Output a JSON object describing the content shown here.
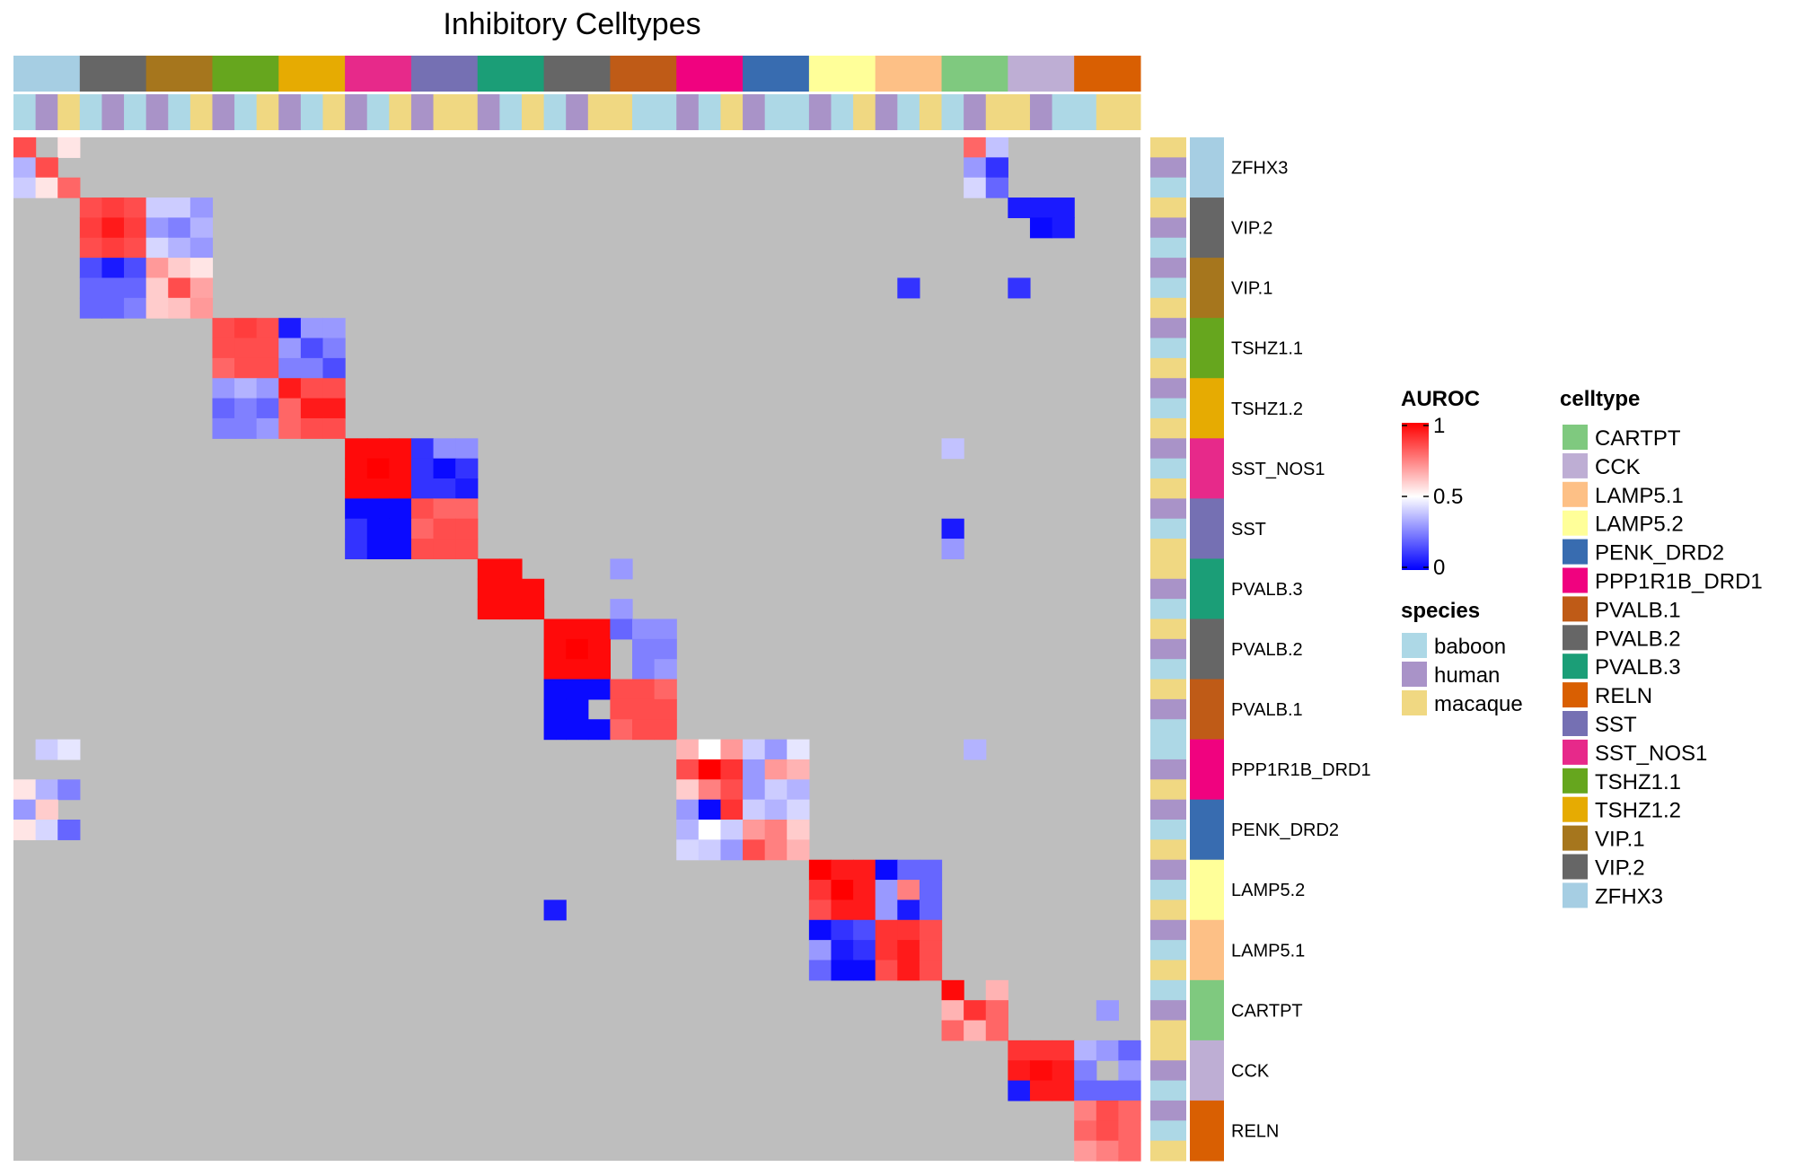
{
  "chart_data": {
    "type": "heatmap",
    "title": "Inhibitory Celltypes",
    "value_name": "AUROC",
    "color_scale": {
      "low": "#0000FF",
      "mid": "#FFFFFF",
      "high": "#FF0000",
      "range": [
        0,
        1
      ],
      "ticks": [
        "1",
        "0.5",
        "0"
      ]
    },
    "na_color": "#BEBEBE",
    "celltype_colors": {
      "CARTPT": "#7FC97F",
      "CCK": "#BEAED4",
      "LAMP5.1": "#FDC086",
      "LAMP5.2": "#FFFF99",
      "PENK_DRD2": "#386CB0",
      "PPP1R1B_DRD1": "#F0027F",
      "PVALB.1": "#BF5B17",
      "PVALB.2": "#666666",
      "PVALB.3": "#1B9E77",
      "RELN": "#D95F02",
      "SST": "#7570B3",
      "SST_NOS1": "#E7298A",
      "TSHZ1.1": "#66A61E",
      "TSHZ1.2": "#E6AB02",
      "VIP.1": "#A6761D",
      "VIP.2": "#666666",
      "ZFHX3": "#A6CEE3"
    },
    "species_colors": {
      "baboon": "#ADD8E6",
      "human": "#A993C8",
      "macaque": "#F0D882"
    },
    "row_groups": [
      {
        "celltype": "ZFHX3",
        "species": [
          "macaque",
          "human",
          "baboon"
        ]
      },
      {
        "celltype": "VIP.2",
        "species": [
          "macaque",
          "human",
          "baboon"
        ]
      },
      {
        "celltype": "VIP.1",
        "species": [
          "human",
          "baboon",
          "macaque"
        ]
      },
      {
        "celltype": "TSHZ1.1",
        "species": [
          "human",
          "baboon",
          "macaque"
        ]
      },
      {
        "celltype": "TSHZ1.2",
        "species": [
          "human",
          "baboon",
          "macaque"
        ]
      },
      {
        "celltype": "SST_NOS1",
        "species": [
          "human",
          "baboon",
          "macaque"
        ]
      },
      {
        "celltype": "SST",
        "species": [
          "human",
          "baboon",
          "macaque"
        ]
      },
      {
        "celltype": "PVALB.3",
        "species": [
          "macaque",
          "human",
          "baboon"
        ]
      },
      {
        "celltype": "PVALB.2",
        "species": [
          "macaque",
          "human",
          "baboon"
        ]
      },
      {
        "celltype": "PVALB.1",
        "species": [
          "macaque",
          "human",
          "baboon"
        ]
      },
      {
        "celltype": "PPP1R1B_DRD1",
        "species": [
          "baboon",
          "human",
          "macaque"
        ]
      },
      {
        "celltype": "PENK_DRD2",
        "species": [
          "human",
          "baboon",
          "macaque"
        ]
      },
      {
        "celltype": "LAMP5.2",
        "species": [
          "human",
          "baboon",
          "macaque"
        ]
      },
      {
        "celltype": "LAMP5.1",
        "species": [
          "human",
          "baboon",
          "macaque"
        ]
      },
      {
        "celltype": "CARTPT",
        "species": [
          "baboon",
          "human",
          "macaque"
        ]
      },
      {
        "celltype": "CCK",
        "species": [
          "macaque",
          "human",
          "baboon"
        ]
      },
      {
        "celltype": "RELN",
        "species": [
          "human",
          "baboon",
          "macaque"
        ]
      }
    ],
    "col_species": [
      "baboon",
      "human",
      "macaque",
      "baboon",
      "human",
      "baboon",
      "human",
      "baboon",
      "macaque",
      "human",
      "baboon",
      "macaque",
      "human",
      "baboon",
      "macaque",
      "human",
      "baboon",
      "macaque",
      "human",
      "macaque",
      "macaque",
      "human",
      "baboon",
      "macaque",
      "baboon",
      "human",
      "macaque",
      "macaque",
      "baboon",
      "baboon",
      "human",
      "baboon",
      "macaque",
      "human",
      "baboon",
      "baboon",
      "human",
      "baboon",
      "macaque",
      "human",
      "baboon",
      "macaque",
      "baboon",
      "human",
      "macaque",
      "macaque",
      "human",
      "baboon",
      "baboon",
      "macaque",
      "macaque"
    ],
    "blocks": [
      {
        "rows": [
          0,
          2
        ],
        "cols": [
          0,
          2
        ],
        "values": [
          [
            0.85,
            null,
            0.55
          ],
          [
            0.35,
            0.85,
            null
          ],
          [
            0.4,
            0.55,
            0.8
          ]
        ]
      },
      {
        "rows": [
          3,
          5
        ],
        "cols": [
          3,
          5
        ],
        "values": [
          [
            0.85,
            0.88,
            0.85
          ],
          [
            0.88,
            0.95,
            0.88
          ],
          [
            0.85,
            0.88,
            0.85
          ]
        ]
      },
      {
        "rows": [
          3,
          5
        ],
        "cols": [
          6,
          8
        ],
        "values": [
          [
            0.4,
            0.4,
            0.3
          ],
          [
            0.3,
            0.25,
            0.35
          ],
          [
            0.42,
            0.35,
            0.3
          ]
        ]
      },
      {
        "rows": [
          6,
          8
        ],
        "cols": [
          3,
          5
        ],
        "values": [
          [
            0.15,
            0.05,
            0.15
          ],
          [
            0.2,
            0.2,
            0.2
          ],
          [
            0.2,
            0.2,
            0.25
          ]
        ]
      },
      {
        "rows": [
          6,
          8
        ],
        "cols": [
          6,
          8
        ],
        "values": [
          [
            0.7,
            0.6,
            0.55
          ],
          [
            0.6,
            0.85,
            0.68
          ],
          [
            0.6,
            0.62,
            0.7
          ]
        ]
      },
      {
        "rows": [
          9,
          11
        ],
        "cols": [
          9,
          11
        ],
        "values": [
          [
            0.85,
            0.88,
            0.85
          ],
          [
            0.85,
            0.85,
            0.85
          ],
          [
            0.8,
            0.85,
            0.85
          ]
        ]
      },
      {
        "rows": [
          9,
          11
        ],
        "cols": [
          12,
          14
        ],
        "values": [
          [
            0.05,
            0.3,
            0.3
          ],
          [
            0.3,
            0.15,
            0.25
          ],
          [
            0.25,
            0.25,
            0.15
          ]
        ]
      },
      {
        "rows": [
          12,
          14
        ],
        "cols": [
          9,
          11
        ],
        "values": [
          [
            0.3,
            0.35,
            0.3
          ],
          [
            0.2,
            0.25,
            0.2
          ],
          [
            0.25,
            0.25,
            0.3
          ]
        ]
      },
      {
        "rows": [
          12,
          14
        ],
        "cols": [
          12,
          14
        ],
        "values": [
          [
            0.95,
            0.85,
            0.85
          ],
          [
            0.8,
            0.95,
            0.95
          ],
          [
            0.8,
            0.85,
            0.85
          ]
        ]
      },
      {
        "rows": [
          15,
          17
        ],
        "cols": [
          15,
          17
        ],
        "values": [
          [
            0.98,
            0.98,
            0.98
          ],
          [
            0.98,
            1.0,
            0.98
          ],
          [
            0.98,
            0.98,
            0.98
          ]
        ]
      },
      {
        "rows": [
          15,
          17
        ],
        "cols": [
          18,
          20
        ],
        "values": [
          [
            0.1,
            0.28,
            0.28
          ],
          [
            0.1,
            0.02,
            0.1
          ],
          [
            0.1,
            0.1,
            0.05
          ]
        ]
      },
      {
        "rows": [
          18,
          20
        ],
        "cols": [
          15,
          17
        ],
        "values": [
          [
            0.02,
            0.02,
            0.02
          ],
          [
            0.1,
            0.02,
            0.02
          ],
          [
            0.1,
            0.02,
            0.02
          ]
        ]
      },
      {
        "rows": [
          18,
          20
        ],
        "cols": [
          18,
          20
        ],
        "values": [
          [
            0.85,
            0.8,
            0.8
          ],
          [
            0.8,
            0.85,
            0.85
          ],
          [
            0.85,
            0.85,
            0.85
          ]
        ]
      },
      {
        "rows": [
          21,
          23
        ],
        "cols": [
          21,
          23
        ],
        "values": [
          [
            0.98,
            0.98,
            null
          ],
          [
            0.98,
            0.98,
            0.98
          ],
          [
            0.98,
            0.98,
            0.98
          ]
        ]
      },
      {
        "rows": [
          24,
          26
        ],
        "cols": [
          24,
          26
        ],
        "values": [
          [
            0.98,
            0.98,
            0.98
          ],
          [
            0.98,
            1.0,
            0.98
          ],
          [
            0.98,
            0.98,
            0.98
          ]
        ]
      },
      {
        "rows": [
          24,
          26
        ],
        "cols": [
          27,
          29
        ],
        "values": [
          [
            0.2,
            0.28,
            0.28
          ],
          [
            null,
            0.25,
            0.25
          ],
          [
            null,
            0.25,
            0.3
          ]
        ]
      },
      {
        "rows": [
          27,
          29
        ],
        "cols": [
          24,
          26
        ],
        "values": [
          [
            0.02,
            0.02,
            0.02
          ],
          [
            0.02,
            0.02,
            null
          ],
          [
            0.02,
            0.02,
            0.02
          ]
        ]
      },
      {
        "rows": [
          27,
          29
        ],
        "cols": [
          27,
          29
        ],
        "values": [
          [
            0.85,
            0.85,
            0.8
          ],
          [
            0.85,
            0.85,
            0.85
          ],
          [
            0.8,
            0.85,
            0.85
          ]
        ]
      },
      {
        "rows": [
          30,
          35
        ],
        "cols": [
          30,
          35
        ],
        "values": [
          [
            0.65,
            0.5,
            0.7,
            0.4,
            0.3,
            0.45
          ],
          [
            0.85,
            1.0,
            0.9,
            0.3,
            0.7,
            0.65
          ],
          [
            0.6,
            0.75,
            0.85,
            0.3,
            0.4,
            0.35
          ],
          [
            0.3,
            0.02,
            0.9,
            0.4,
            0.35,
            0.42
          ],
          [
            0.35,
            0.5,
            0.4,
            0.7,
            0.75,
            0.6
          ],
          [
            0.42,
            0.4,
            0.3,
            0.85,
            0.75,
            0.65
          ]
        ]
      },
      {
        "rows": [
          36,
          38
        ],
        "cols": [
          36,
          38
        ],
        "values": [
          [
            1.0,
            0.95,
            0.95
          ],
          [
            0.9,
            1.0,
            0.95
          ],
          [
            0.85,
            0.95,
            0.95
          ]
        ]
      },
      {
        "rows": [
          36,
          38
        ],
        "cols": [
          39,
          41
        ],
        "values": [
          [
            0.02,
            0.2,
            0.2
          ],
          [
            0.3,
            0.75,
            0.2
          ],
          [
            0.3,
            0.05,
            0.2
          ]
        ]
      },
      {
        "rows": [
          39,
          41
        ],
        "cols": [
          36,
          38
        ],
        "values": [
          [
            0.02,
            0.1,
            0.15
          ],
          [
            0.3,
            0.05,
            0.1
          ],
          [
            0.2,
            0.02,
            0.02
          ]
        ]
      },
      {
        "rows": [
          39,
          41
        ],
        "cols": [
          39,
          41
        ],
        "values": [
          [
            0.9,
            0.9,
            0.85
          ],
          [
            0.9,
            0.95,
            0.85
          ],
          [
            0.85,
            0.95,
            0.85
          ]
        ]
      },
      {
        "rows": [
          42,
          44
        ],
        "cols": [
          42,
          44
        ],
        "values": [
          [
            0.98,
            null,
            0.65
          ],
          [
            0.65,
            0.9,
            0.8
          ],
          [
            0.8,
            0.65,
            0.8
          ]
        ]
      },
      {
        "rows": [
          45,
          47
        ],
        "cols": [
          45,
          47
        ],
        "values": [
          [
            0.9,
            0.9,
            0.9
          ],
          [
            0.95,
            0.98,
            0.95
          ],
          [
            0.95,
            0.95,
            0.95
          ]
        ]
      },
      {
        "rows": [
          45,
          47
        ],
        "cols": [
          48,
          50
        ],
        "values": [
          [
            0.35,
            0.3,
            0.2
          ],
          [
            0.25,
            null,
            0.3
          ],
          [
            0.2,
            0.2,
            0.2
          ]
        ]
      },
      {
        "rows": [
          48,
          50
        ],
        "cols": [
          48,
          50
        ],
        "values": [
          [
            0.75,
            0.85,
            0.8
          ],
          [
            0.8,
            0.85,
            0.8
          ],
          [
            0.7,
            0.75,
            0.8
          ]
        ]
      }
    ],
    "cells": [
      {
        "row": 0,
        "col": 43,
        "value": 0.8
      },
      {
        "row": 0,
        "col": 44,
        "value": 0.38
      },
      {
        "row": 1,
        "col": 43,
        "value": 0.3
      },
      {
        "row": 1,
        "col": 44,
        "value": 0.1
      },
      {
        "row": 2,
        "col": 43,
        "value": 0.42
      },
      {
        "row": 2,
        "col": 44,
        "value": 0.2
      },
      {
        "row": 3,
        "col": 45,
        "value": 0.05
      },
      {
        "row": 3,
        "col": 46,
        "value": 0.05
      },
      {
        "row": 3,
        "col": 47,
        "value": 0.05
      },
      {
        "row": 4,
        "col": 46,
        "value": 0.02
      },
      {
        "row": 4,
        "col": 47,
        "value": 0.05
      },
      {
        "row": 7,
        "col": 40,
        "value": 0.1
      },
      {
        "row": 7,
        "col": 45,
        "value": 0.1
      },
      {
        "row": 15,
        "col": 42,
        "value": 0.38
      },
      {
        "row": 19,
        "col": 42,
        "value": 0.05
      },
      {
        "row": 20,
        "col": 42,
        "value": 0.3
      },
      {
        "row": 21,
        "col": 27,
        "value": 0.3
      },
      {
        "row": 23,
        "col": 27,
        "value": 0.3
      },
      {
        "row": 30,
        "col": 1,
        "value": 0.4
      },
      {
        "row": 30,
        "col": 2,
        "value": 0.45
      },
      {
        "row": 30,
        "col": 43,
        "value": 0.35
      },
      {
        "row": 32,
        "col": 0,
        "value": 0.55
      },
      {
        "row": 32,
        "col": 1,
        "value": 0.35
      },
      {
        "row": 32,
        "col": 2,
        "value": 0.25
      },
      {
        "row": 33,
        "col": 0,
        "value": 0.3
      },
      {
        "row": 33,
        "col": 1,
        "value": 0.6
      },
      {
        "row": 34,
        "col": 0,
        "value": 0.55
      },
      {
        "row": 34,
        "col": 1,
        "value": 0.42
      },
      {
        "row": 34,
        "col": 2,
        "value": 0.2
      },
      {
        "row": 38,
        "col": 24,
        "value": 0.05
      },
      {
        "row": 43,
        "col": 49,
        "value": 0.3
      },
      {
        "row": 47,
        "col": 45,
        "value": 0.05
      }
    ]
  },
  "legend": {
    "auroc": {
      "title": "AUROC",
      "ticks": [
        "1",
        "0.5",
        "0"
      ]
    },
    "species": {
      "title": "species",
      "items": [
        "baboon",
        "human",
        "macaque"
      ]
    },
    "celltype": {
      "title": "celltype",
      "items": [
        "CARTPT",
        "CCK",
        "LAMP5.1",
        "LAMP5.2",
        "PENK_DRD2",
        "PPP1R1B_DRD1",
        "PVALB.1",
        "PVALB.2",
        "PVALB.3",
        "RELN",
        "SST",
        "SST_NOS1",
        "TSHZ1.1",
        "TSHZ1.2",
        "VIP.1",
        "VIP.2",
        "ZFHX3"
      ]
    }
  }
}
